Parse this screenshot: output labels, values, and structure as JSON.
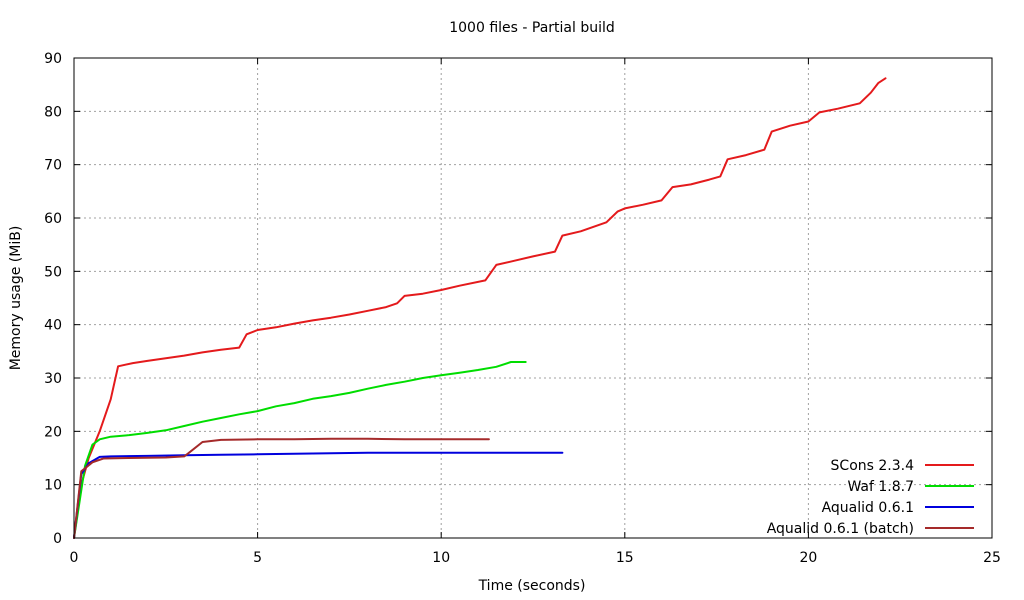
{
  "chart_data": {
    "type": "line",
    "title": "1000 files - Partial build",
    "xlabel": "Time (seconds)",
    "ylabel": "Memory usage (MiB)",
    "xlim": [
      0,
      25
    ],
    "ylim": [
      0,
      90
    ],
    "xticks": [
      0,
      5,
      10,
      15,
      20,
      25
    ],
    "yticks": [
      0,
      10,
      20,
      30,
      40,
      50,
      60,
      70,
      80,
      90
    ],
    "grid": true,
    "legend_position": "bottom-right",
    "series": [
      {
        "name": "SCons 2.3.4",
        "color": "#e41a1c",
        "points": [
          [
            0,
            0
          ],
          [
            0.2,
            10
          ],
          [
            0.4,
            15
          ],
          [
            0.7,
            20
          ],
          [
            1.0,
            26
          ],
          [
            1.2,
            32.2
          ],
          [
            1.6,
            32.8
          ],
          [
            2,
            33.2
          ],
          [
            2.5,
            33.7
          ],
          [
            3,
            34.2
          ],
          [
            3.5,
            34.8
          ],
          [
            4,
            35.3
          ],
          [
            4.5,
            35.7
          ],
          [
            4.7,
            38.2
          ],
          [
            5,
            39
          ],
          [
            5.5,
            39.5
          ],
          [
            6,
            40.2
          ],
          [
            6.5,
            40.8
          ],
          [
            7,
            41.3
          ],
          [
            7.5,
            41.9
          ],
          [
            8,
            42.6
          ],
          [
            8.5,
            43.3
          ],
          [
            8.8,
            44
          ],
          [
            9,
            45.4
          ],
          [
            9.5,
            45.8
          ],
          [
            10,
            46.5
          ],
          [
            10.5,
            47.3
          ],
          [
            11.2,
            48.3
          ],
          [
            11.5,
            51.2
          ],
          [
            12,
            52
          ],
          [
            12.5,
            52.8
          ],
          [
            13.1,
            53.7
          ],
          [
            13.3,
            56.7
          ],
          [
            13.8,
            57.5
          ],
          [
            14.5,
            59.2
          ],
          [
            14.8,
            61.2
          ],
          [
            15,
            61.8
          ],
          [
            15.5,
            62.5
          ],
          [
            16,
            63.3
          ],
          [
            16.3,
            65.8
          ],
          [
            16.8,
            66.3
          ],
          [
            17.3,
            67.2
          ],
          [
            17.6,
            67.8
          ],
          [
            17.8,
            71
          ],
          [
            18.3,
            71.8
          ],
          [
            18.8,
            72.8
          ],
          [
            19,
            76.2
          ],
          [
            19.5,
            77.3
          ],
          [
            20,
            78.1
          ],
          [
            20.3,
            79.8
          ],
          [
            20.8,
            80.5
          ],
          [
            21.4,
            81.5
          ],
          [
            21.7,
            83.5
          ],
          [
            21.9,
            85.3
          ],
          [
            22.1,
            86.2
          ]
        ]
      },
      {
        "name": "Waf 1.8.7",
        "color": "#00dd00",
        "points": [
          [
            0,
            0
          ],
          [
            0.3,
            13.5
          ],
          [
            0.5,
            17.5
          ],
          [
            0.7,
            18.5
          ],
          [
            1,
            19
          ],
          [
            1.5,
            19.3
          ],
          [
            2,
            19.7
          ],
          [
            2.5,
            20.2
          ],
          [
            3,
            21
          ],
          [
            3.5,
            21.8
          ],
          [
            4,
            22.5
          ],
          [
            4.5,
            23.2
          ],
          [
            5,
            23.8
          ],
          [
            5.5,
            24.7
          ],
          [
            6,
            25.3
          ],
          [
            6.5,
            26.1
          ],
          [
            7,
            26.6
          ],
          [
            7.5,
            27.2
          ],
          [
            8,
            28
          ],
          [
            8.5,
            28.7
          ],
          [
            9,
            29.3
          ],
          [
            9.5,
            30
          ],
          [
            10,
            30.5
          ],
          [
            10.5,
            31
          ],
          [
            11,
            31.5
          ],
          [
            11.5,
            32.1
          ],
          [
            11.9,
            33
          ],
          [
            12.3,
            33
          ]
        ]
      },
      {
        "name": "Aqualid 0.6.1",
        "color": "#0000dd",
        "points": [
          [
            0,
            0
          ],
          [
            0.2,
            12
          ],
          [
            0.4,
            14
          ],
          [
            0.7,
            15.2
          ],
          [
            1,
            15.3
          ],
          [
            2,
            15.4
          ],
          [
            3,
            15.5
          ],
          [
            4,
            15.6
          ],
          [
            5,
            15.7
          ],
          [
            6,
            15.8
          ],
          [
            7,
            15.9
          ],
          [
            8,
            16
          ],
          [
            9,
            16
          ],
          [
            10,
            16
          ],
          [
            11,
            16
          ],
          [
            12,
            16
          ],
          [
            13.3,
            16
          ]
        ]
      },
      {
        "name": "Aqualid 0.6.1 (batch)",
        "color": "#a52a2a",
        "points": [
          [
            0,
            0
          ],
          [
            0.2,
            12.5
          ],
          [
            0.5,
            14.2
          ],
          [
            0.8,
            14.9
          ],
          [
            1.5,
            15
          ],
          [
            2.5,
            15.1
          ],
          [
            3,
            15.3
          ],
          [
            3.1,
            15.8
          ],
          [
            3.5,
            18
          ],
          [
            4,
            18.4
          ],
          [
            5,
            18.5
          ],
          [
            6,
            18.5
          ],
          [
            7,
            18.6
          ],
          [
            8,
            18.6
          ],
          [
            9,
            18.5
          ],
          [
            10,
            18.5
          ],
          [
            11.3,
            18.5
          ]
        ]
      }
    ]
  }
}
